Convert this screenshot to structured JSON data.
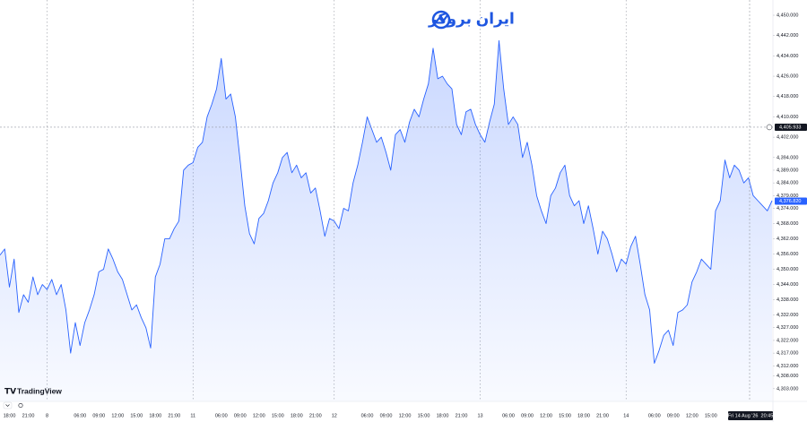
{
  "branding": {
    "logo": "ایران بروکر",
    "watermark": "TradingView"
  },
  "chart_data": {
    "type": "area",
    "color": "#2962ff",
    "categories": [
      null,
      null,
      "18:00",
      null,
      null,
      null,
      "21:00",
      null,
      null,
      null,
      "8",
      null,
      null,
      null,
      null,
      null,
      null,
      "06:00",
      null,
      null,
      null,
      "09:00",
      null,
      null,
      null,
      "12:00",
      null,
      null,
      null,
      "15:00",
      null,
      null,
      null,
      "18:00",
      null,
      null,
      null,
      "21:00",
      null,
      null,
      null,
      "11",
      null,
      null,
      null,
      null,
      null,
      "06:00",
      null,
      null,
      null,
      "09:00",
      null,
      null,
      null,
      "12:00",
      null,
      null,
      null,
      "15:00",
      null,
      null,
      null,
      "18:00",
      null,
      null,
      null,
      "21:00",
      null,
      null,
      null,
      "12",
      null,
      null,
      null,
      null,
      null,
      null,
      "06:00",
      null,
      null,
      null,
      "09:00",
      null,
      null,
      null,
      "12:00",
      null,
      null,
      null,
      "15:00",
      null,
      null,
      null,
      "18:00",
      null,
      null,
      null,
      "21:00",
      null,
      null,
      null,
      "13",
      null,
      null,
      null,
      null,
      null,
      "06:00",
      null,
      null,
      null,
      "09:00",
      null,
      null,
      null,
      "12:00",
      null,
      null,
      null,
      "15:00",
      null,
      null,
      null,
      "18:00",
      null,
      null,
      null,
      "21:00",
      null,
      null,
      null,
      null,
      "14",
      null,
      null,
      null,
      null,
      null,
      "06:00",
      null,
      null,
      null,
      "09:00",
      null,
      null,
      null,
      "12:00",
      null,
      null,
      null,
      "15:00",
      null,
      null,
      null,
      null,
      null,
      null,
      null,
      null,
      null,
      null,
      null,
      null,
      null
    ],
    "values": [
      4355.6,
      4358,
      4343,
      4354,
      4333,
      4340,
      4337,
      4347,
      4340,
      4344,
      4342,
      4346,
      4340,
      4344,
      4334,
      4317,
      4329,
      4320,
      4329,
      4334,
      4340,
      4349,
      4350,
      4358,
      4354,
      4349,
      4346,
      4340,
      4334,
      4336,
      4331,
      4327,
      4319,
      4347,
      4352,
      4362,
      4362,
      4366,
      4369,
      4389,
      4391,
      4392,
      4398,
      4400,
      4410,
      4415,
      4421,
      4433,
      4417,
      4419,
      4410,
      4393,
      4375,
      4364,
      4360,
      4370,
      4372,
      4377,
      4384,
      4388,
      4394,
      4396,
      4388,
      4391,
      4386,
      4388,
      4380,
      4382,
      4373,
      4363,
      4370,
      4369,
      4366,
      4374,
      4373,
      4384,
      4391,
      4400,
      4410,
      4405,
      4400,
      4402,
      4396,
      4389,
      4403,
      4405,
      4400,
      4408,
      4413,
      4410,
      4417,
      4423,
      4437,
      4425,
      4426,
      4423,
      4421,
      4407,
      4403,
      4412,
      4413,
      4407,
      4403,
      4400,
      4408,
      4415,
      4440,
      4421,
      4407,
      4410,
      4407,
      4394,
      4400,
      4391,
      4379,
      4373,
      4368,
      4379,
      4382,
      4388,
      4391,
      4379,
      4375,
      4377,
      4368,
      4375,
      4366,
      4356,
      4365,
      4362,
      4356,
      4349,
      4354,
      4352,
      4359,
      4363,
      4352,
      4340,
      4334,
      4313,
      4318,
      4324,
      4326,
      4320,
      4333,
      4334,
      4336,
      4345,
      4349,
      4354,
      4352,
      4350,
      4373,
      4377,
      4393,
      4386,
      4391,
      4389,
      4384,
      4386,
      4379,
      4377,
      4375,
      4373,
      4377
    ],
    "ylim": [
      4298,
      4456
    ],
    "yticks": [
      {
        "value": 4450,
        "label": "4,450.000"
      },
      {
        "value": 4442,
        "label": "4,442.000"
      },
      {
        "value": 4434,
        "label": "4,434.000"
      },
      {
        "value": 4426,
        "label": "4,426.000"
      },
      {
        "value": 4418,
        "label": "4,418.000"
      },
      {
        "value": 4410,
        "label": "4,410.000"
      },
      {
        "value": 4402,
        "label": "4,402.000"
      },
      {
        "value": 4394,
        "label": "4,394.000"
      },
      {
        "value": 4389,
        "label": "4,389.000"
      },
      {
        "value": 4384,
        "label": "4,384.000"
      },
      {
        "value": 4379,
        "label": "4,379.000"
      },
      {
        "value": 4374,
        "label": "4,374.000"
      },
      {
        "value": 4368,
        "label": "4,368.000"
      },
      {
        "value": 4362,
        "label": "4,362.000"
      },
      {
        "value": 4356,
        "label": "4,356.000"
      },
      {
        "value": 4350,
        "label": "4,350.000"
      },
      {
        "value": 4344,
        "label": "4,344.000"
      },
      {
        "value": 4338,
        "label": "4,338.000"
      },
      {
        "value": 4332,
        "label": "4,332.000"
      },
      {
        "value": 4327,
        "label": "4,327.000"
      },
      {
        "value": 4322,
        "label": "4,322.000"
      },
      {
        "value": 4317,
        "label": "4,317.000"
      },
      {
        "value": 4312,
        "label": "4,312.000"
      },
      {
        "value": 4308,
        "label": "4,308.000"
      },
      {
        "value": 4303,
        "label": "4,303.000"
      }
    ],
    "last_price": {
      "value": 4376.82,
      "label": "4,376.820"
    },
    "crosshair_price": {
      "value": 4405.933,
      "label": "4,405.933"
    },
    "crosshair_time": "Fri 14 Aug '26  20:45"
  }
}
